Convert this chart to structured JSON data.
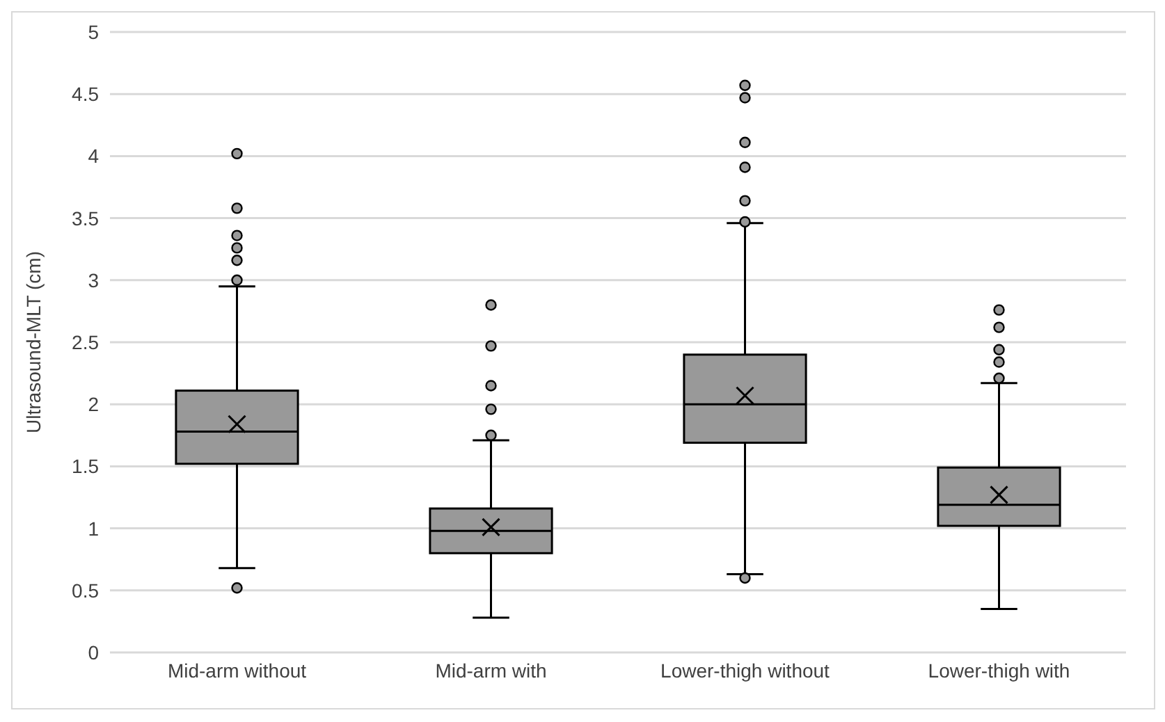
{
  "chart_data": {
    "type": "box",
    "ylabel": "Ultrasound-MLT (cm)",
    "categories": [
      "Mid-arm without",
      "Mid-arm with",
      "Lower-thigh without",
      "Lower-thigh with"
    ],
    "color": "#999999",
    "ylim": [
      0,
      5
    ],
    "yticks": [
      0,
      0.5,
      1,
      1.5,
      2,
      2.5,
      3,
      3.5,
      4,
      4.5,
      5
    ],
    "grid": "y",
    "boxes": [
      {
        "low": 0.68,
        "q1": 1.52,
        "median": 1.78,
        "q3": 2.11,
        "high": 2.95,
        "mean": 1.84,
        "outliers": [
          4.02,
          3.58,
          3.36,
          3.26,
          3.16,
          3.0,
          0.52
        ]
      },
      {
        "low": 0.28,
        "q1": 0.8,
        "median": 0.98,
        "q3": 1.16,
        "high": 1.71,
        "mean": 1.01,
        "outliers": [
          2.8,
          2.47,
          2.15,
          1.96,
          1.75
        ]
      },
      {
        "low": 0.63,
        "q1": 1.69,
        "median": 2.0,
        "q3": 2.4,
        "high": 3.46,
        "mean": 2.07,
        "outliers": [
          4.57,
          4.47,
          4.11,
          3.91,
          3.64,
          3.47,
          0.6
        ]
      },
      {
        "low": 0.35,
        "q1": 1.02,
        "median": 1.19,
        "q3": 1.49,
        "high": 2.17,
        "mean": 1.27,
        "outliers": [
          2.76,
          2.62,
          2.44,
          2.34,
          2.21
        ]
      }
    ]
  }
}
